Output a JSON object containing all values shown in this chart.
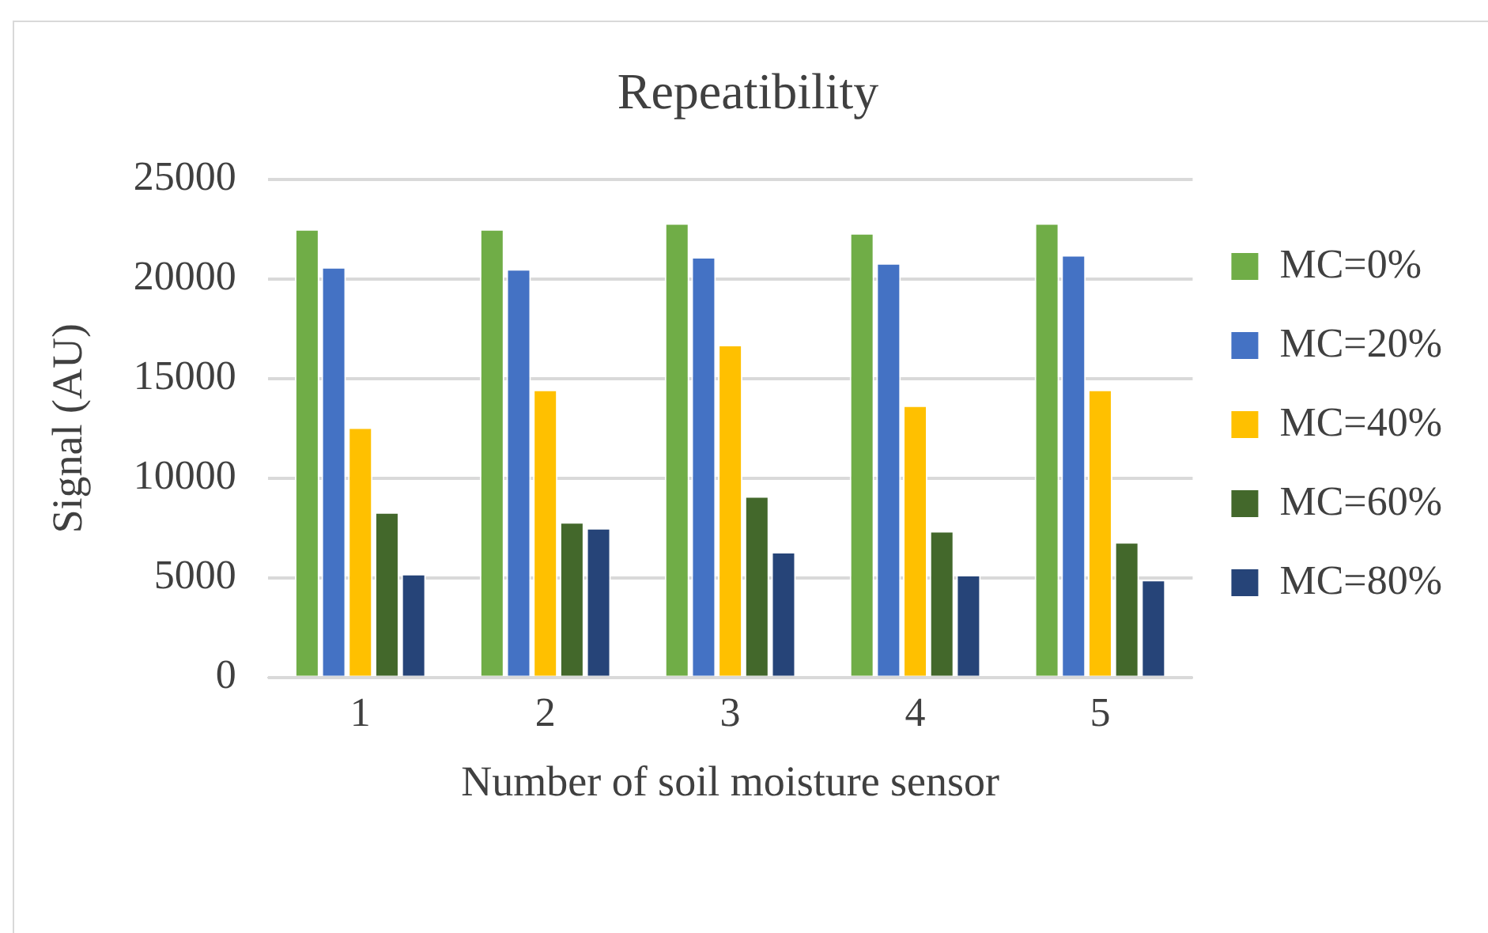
{
  "chart_data": {
    "type": "bar",
    "title": "Repeatibility",
    "xlabel": "Number of soil moisture sensor",
    "ylabel": "Signal (AU)",
    "categories": [
      "1",
      "2",
      "3",
      "4",
      "5"
    ],
    "series": [
      {
        "name": "MC=0%",
        "color": "#70ad47",
        "values": [
          22500,
          22500,
          22800,
          22300,
          22800
        ]
      },
      {
        "name": "MC=20%",
        "color": "#4472c4",
        "values": [
          20600,
          20500,
          21100,
          20800,
          21200
        ]
      },
      {
        "name": "MC=40%",
        "color": "#ffc000",
        "values": [
          12550,
          14450,
          16700,
          13650,
          14450
        ]
      },
      {
        "name": "MC=60%",
        "color": "#43682b",
        "values": [
          8300,
          7800,
          9100,
          7350,
          6800
        ]
      },
      {
        "name": "MC=80%",
        "color": "#264478",
        "values": [
          5200,
          7500,
          6300,
          5150,
          4900
        ]
      }
    ],
    "ylim": [
      0,
      25000
    ],
    "yticks": [
      0,
      5000,
      10000,
      15000,
      20000,
      25000
    ],
    "grid": "y",
    "legend": "right"
  }
}
